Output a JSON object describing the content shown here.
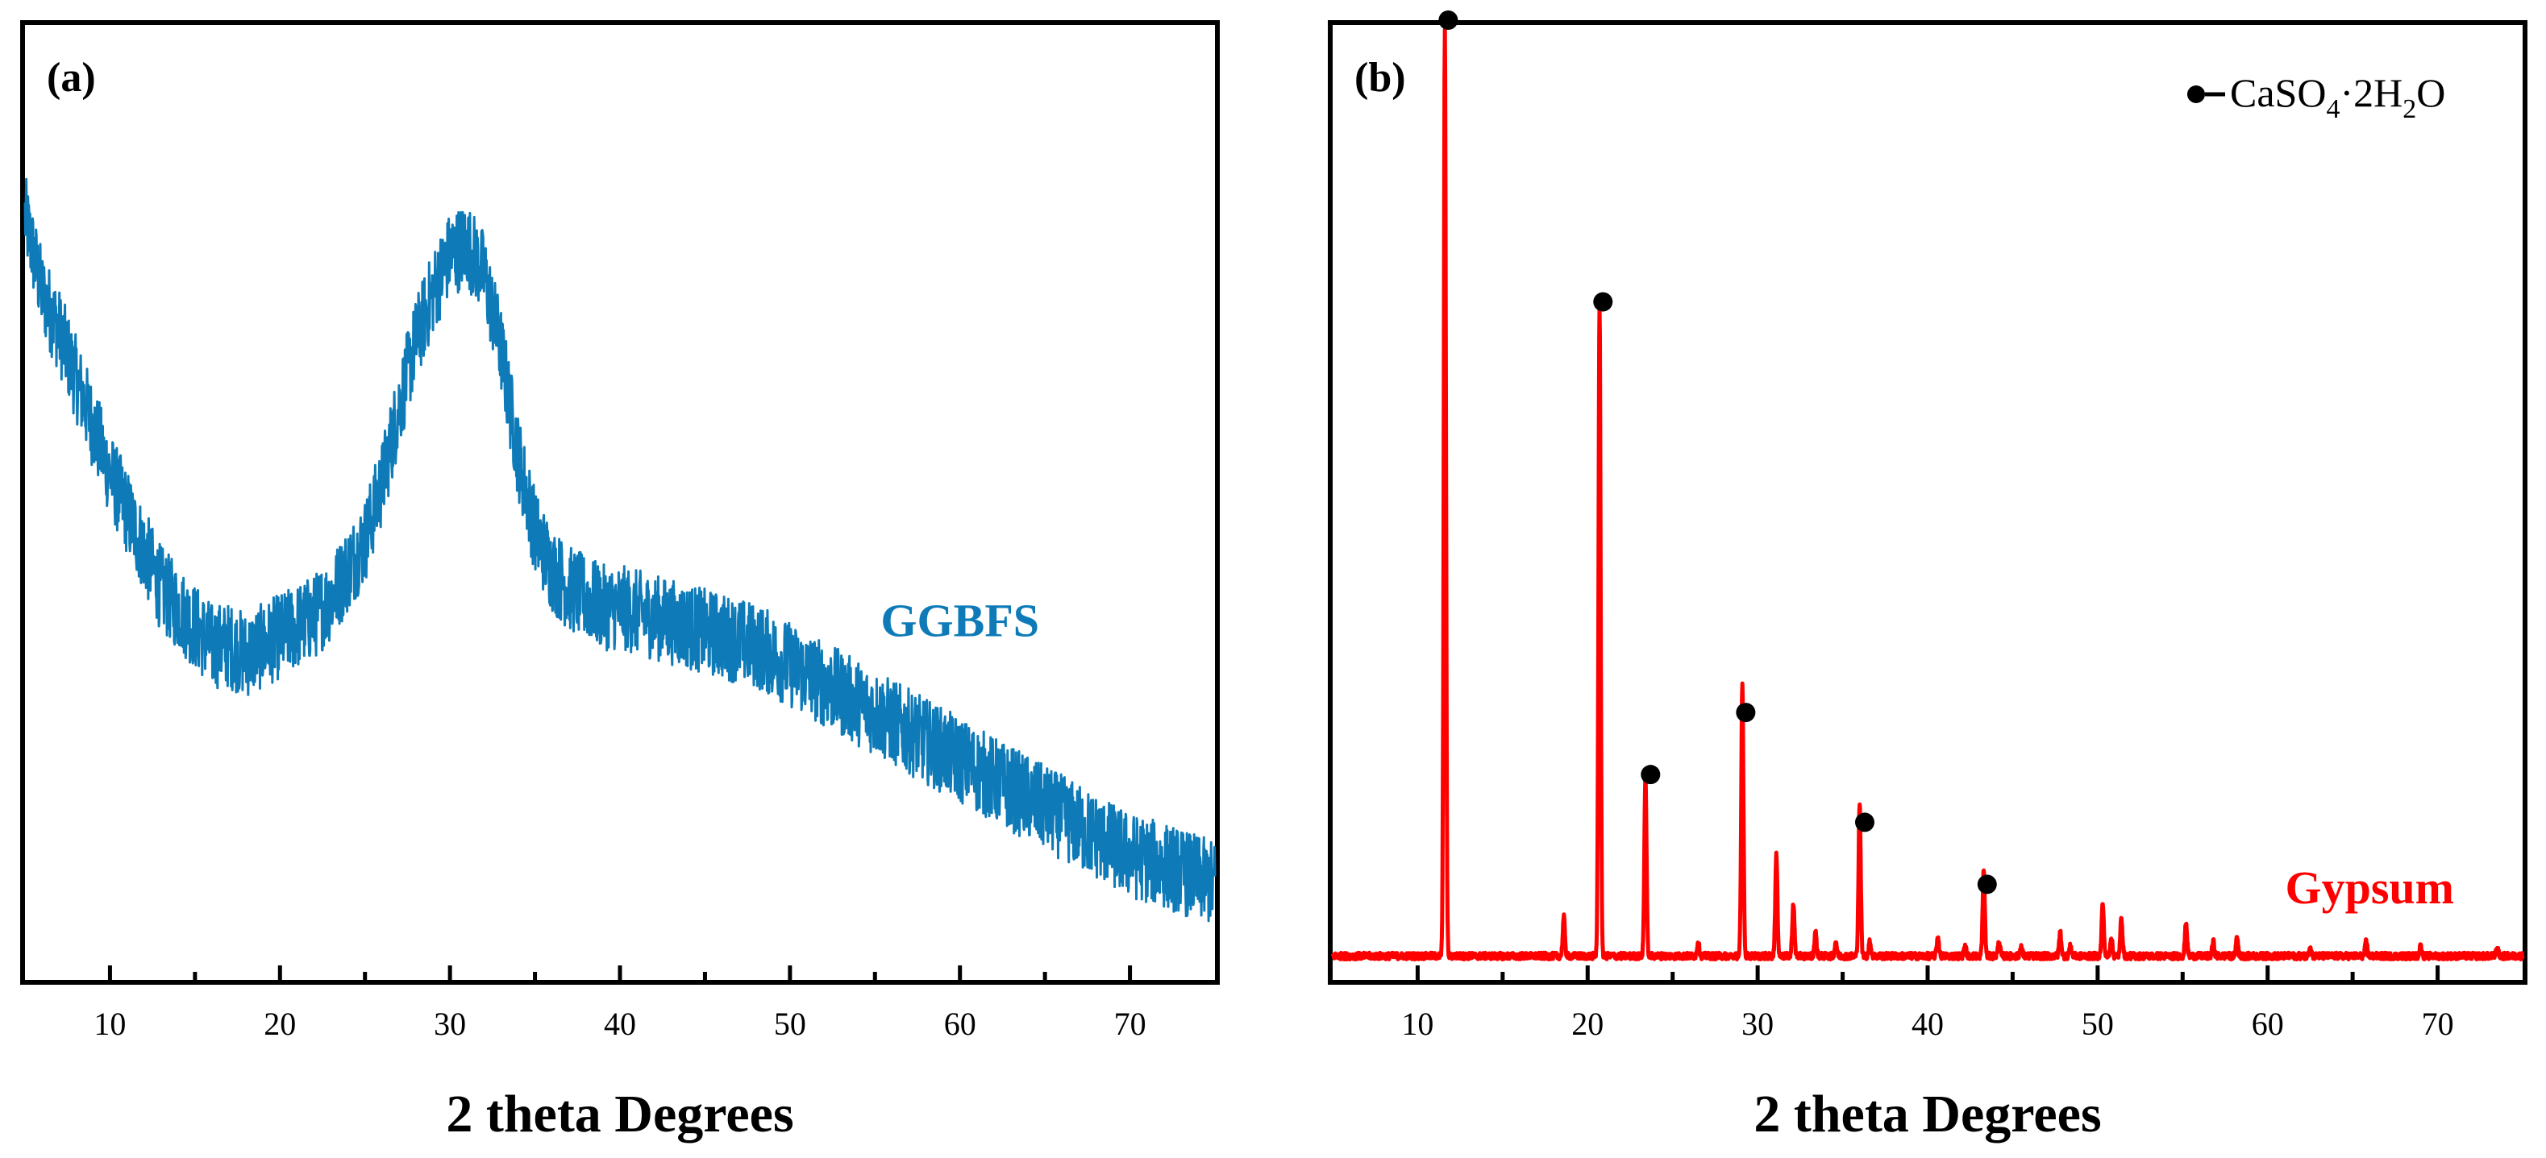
{
  "figure": {
    "xlabel": "2 theta Degrees"
  },
  "chart_data": [
    {
      "type": "line",
      "panel_label": "(a)",
      "title": "",
      "xlabel": "2 theta Degrees",
      "ylabel": "",
      "xlim": [
        5,
        75
      ],
      "ylim": [
        0,
        100
      ],
      "yticks_shown": false,
      "xticks": [
        10,
        20,
        30,
        40,
        50,
        60,
        70
      ],
      "xtick_labels": [
        "10",
        "20",
        "30",
        "40",
        "50",
        "60",
        "70"
      ],
      "color": "#0e7bb8",
      "series": [
        {
          "name": "GGBFS",
          "x": [
            5,
            6,
            7,
            8,
            9,
            10,
            11,
            12,
            13,
            14,
            15,
            16,
            17,
            18,
            19,
            20,
            21,
            22,
            23,
            24,
            25,
            26,
            27,
            28,
            29,
            30,
            31,
            32,
            33,
            34,
            35,
            36,
            37,
            38,
            39,
            40,
            42,
            44,
            46,
            48,
            50,
            52,
            54,
            56,
            58,
            60,
            62,
            64,
            66,
            68,
            70,
            72,
            75
          ],
          "y": [
            80,
            72,
            68,
            63,
            58,
            53,
            49,
            45,
            41,
            39,
            37,
            35,
            35,
            34,
            35,
            36,
            37,
            38,
            40,
            43,
            46,
            52,
            60,
            67,
            72,
            76,
            77,
            74,
            66,
            55,
            47,
            43,
            41,
            40,
            39,
            39,
            38,
            37,
            36,
            35,
            33,
            31,
            29,
            27,
            25,
            23,
            21,
            19,
            17,
            15,
            13,
            12,
            10
          ],
          "noise_amplitude": 4.5
        }
      ],
      "annotations": [
        {
          "text": "GGBFS",
          "x": 60,
          "y": 36
        }
      ]
    },
    {
      "type": "line",
      "panel_label": "(b)",
      "title": "",
      "xlabel": "2 theta Degrees",
      "ylabel": "",
      "xlim": [
        5,
        75
      ],
      "ylim": [
        0,
        100
      ],
      "yticks_shown": false,
      "xticks": [
        10,
        20,
        30,
        40,
        50,
        60,
        70
      ],
      "xtick_labels": [
        "10",
        "20",
        "30",
        "40",
        "50",
        "60",
        "70"
      ],
      "color": "#ff0000",
      "baseline": 2.5,
      "series": [
        {
          "name": "Gypsum",
          "peaks": [
            {
              "x": 11.6,
              "h": 97
            },
            {
              "x": 18.6,
              "h": 4
            },
            {
              "x": 20.7,
              "h": 68
            },
            {
              "x": 23.4,
              "h": 19
            },
            {
              "x": 26.5,
              "h": 1.5
            },
            {
              "x": 29.1,
              "h": 28.5
            },
            {
              "x": 31.1,
              "h": 10.5
            },
            {
              "x": 32.1,
              "h": 5.5
            },
            {
              "x": 33.4,
              "h": 2.5
            },
            {
              "x": 34.6,
              "h": 1.5
            },
            {
              "x": 36.0,
              "h": 16
            },
            {
              "x": 36.6,
              "h": 1.5
            },
            {
              "x": 40.6,
              "h": 2.0
            },
            {
              "x": 42.2,
              "h": 1.0
            },
            {
              "x": 43.3,
              "h": 9
            },
            {
              "x": 44.2,
              "h": 1.5
            },
            {
              "x": 45.5,
              "h": 1.0
            },
            {
              "x": 47.8,
              "h": 2.5
            },
            {
              "x": 48.4,
              "h": 1.0
            },
            {
              "x": 50.3,
              "h": 5.5
            },
            {
              "x": 50.8,
              "h": 2.0
            },
            {
              "x": 51.4,
              "h": 4.0
            },
            {
              "x": 55.2,
              "h": 3.5
            },
            {
              "x": 56.8,
              "h": 1.5
            },
            {
              "x": 58.2,
              "h": 2.0
            },
            {
              "x": 62.5,
              "h": 1.0
            },
            {
              "x": 65.8,
              "h": 1.5
            },
            {
              "x": 69.0,
              "h": 1.0
            },
            {
              "x": 73.5,
              "h": 0.8
            }
          ]
        }
      ],
      "markers": [
        {
          "x": 11.8,
          "y": 100
        },
        {
          "x": 20.9,
          "y": 70.5
        },
        {
          "x": 23.7,
          "y": 21
        },
        {
          "x": 29.3,
          "y": 27.5
        },
        {
          "x": 36.3,
          "y": 16
        },
        {
          "x": 43.5,
          "y": 9.5
        }
      ],
      "legend": {
        "marker": "●",
        "text_parts": [
          "CaSO",
          "4",
          "·2H",
          "2",
          "O"
        ],
        "position": "top-right"
      },
      "annotations": [
        {
          "text": "Gypsum",
          "x": 66,
          "y": 8
        }
      ]
    }
  ]
}
